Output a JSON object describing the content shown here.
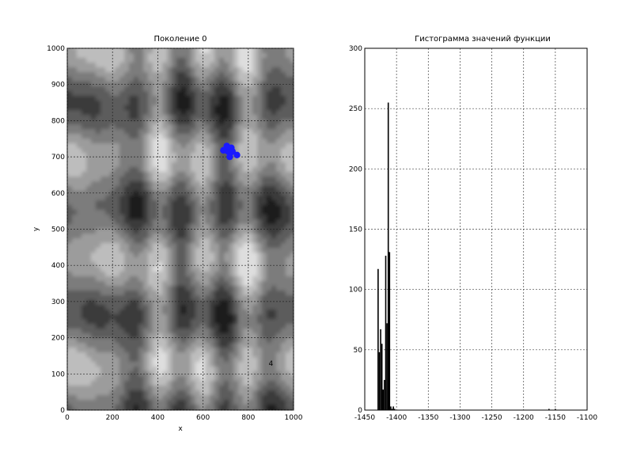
{
  "chart_data": [
    {
      "type": "heatmap",
      "title": "Поколение 0",
      "xlabel": "x",
      "ylabel": "y",
      "xlim": [
        0,
        1000
      ],
      "ylim": [
        0,
        1000
      ],
      "x_ticks": [
        "0",
        "200",
        "400",
        "600",
        "800",
        "1000"
      ],
      "y_ticks": [
        "0",
        "100",
        "200",
        "300",
        "400",
        "500",
        "600",
        "700",
        "800",
        "900",
        "1000"
      ],
      "grid": true,
      "colormap": [
        "#1e1e1e",
        "#3a3a3a",
        "#5c5c5c",
        "#7c7c7c",
        "#9c9c9c",
        "#bdbdbd",
        "#dedede"
      ],
      "contour_label": "4",
      "points_color": "#1a1aff",
      "points": [
        {
          "x": 715,
          "y": 720
        },
        {
          "x": 720,
          "y": 710
        },
        {
          "x": 710,
          "y": 715
        },
        {
          "x": 725,
          "y": 725
        },
        {
          "x": 705,
          "y": 730
        },
        {
          "x": 690,
          "y": 718
        },
        {
          "x": 750,
          "y": 705
        },
        {
          "x": 718,
          "y": 700
        },
        {
          "x": 730,
          "y": 715
        }
      ]
    },
    {
      "type": "bar",
      "title": "Гистограмма значений функции",
      "xlim": [
        -1450,
        -1100
      ],
      "ylim": [
        0,
        300
      ],
      "x_ticks": [
        "-1450",
        "-1400",
        "-1350",
        "-1300",
        "-1250",
        "-1200",
        "-1150",
        "-1100"
      ],
      "y_ticks": [
        "0",
        "50",
        "100",
        "150",
        "200",
        "250",
        "300"
      ],
      "grid": true,
      "bar_color": "#000000",
      "bars": [
        {
          "x": -1430,
          "value": 117
        },
        {
          "x": -1428,
          "value": 48
        },
        {
          "x": -1426,
          "value": 67
        },
        {
          "x": -1424,
          "value": 55
        },
        {
          "x": -1422,
          "value": 17
        },
        {
          "x": -1420,
          "value": 25
        },
        {
          "x": -1418,
          "value": 128
        },
        {
          "x": -1416,
          "value": 72
        },
        {
          "x": -1414,
          "value": 255
        },
        {
          "x": -1412,
          "value": 131
        },
        {
          "x": -1410,
          "value": 3
        },
        {
          "x": -1408,
          "value": 1
        },
        {
          "x": -1406,
          "value": 3
        },
        {
          "x": -1404,
          "value": 1
        },
        {
          "x": -1161,
          "value": 1
        },
        {
          "x": -1151,
          "value": 1
        }
      ]
    }
  ]
}
